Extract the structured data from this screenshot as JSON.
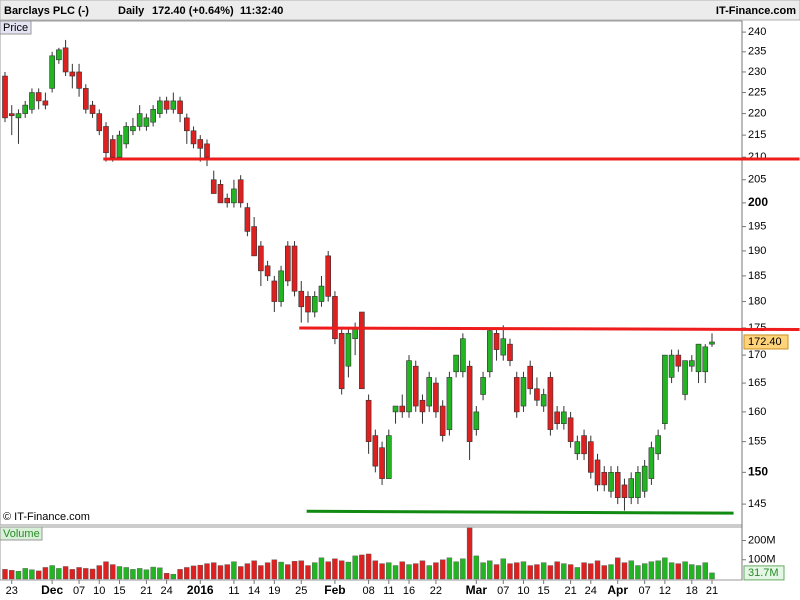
{
  "header": {
    "title": "Barclays PLC (-)",
    "period": "Daily",
    "quote": "172.40 (+0.64%)",
    "time": "11:32:40",
    "site": "IT-Finance.com"
  },
  "chart_data": {
    "type": "candlestick",
    "log_scale": true,
    "price_label": "Price",
    "volume_label": "Volume",
    "watermark": "© IT-Finance.com",
    "up_color": "#22b422",
    "down_color": "#dd2020",
    "categories": [
      null,
      "23",
      null,
      null,
      null,
      null,
      null,
      "Dec",
      null,
      null,
      null,
      "07",
      null,
      null,
      "10",
      null,
      null,
      "15",
      null,
      null,
      null,
      "21",
      null,
      null,
      "24",
      null,
      null,
      null,
      null,
      "2016",
      null,
      null,
      null,
      null,
      "11",
      null,
      null,
      "14",
      null,
      null,
      "19",
      null,
      null,
      null,
      "25",
      null,
      null,
      null,
      null,
      "Feb",
      null,
      null,
      null,
      null,
      "08",
      null,
      null,
      "11",
      null,
      null,
      "16",
      null,
      null,
      null,
      "22",
      null,
      null,
      null,
      null,
      null,
      "Mar",
      null,
      null,
      null,
      "07",
      null,
      null,
      "10",
      null,
      null,
      "15",
      null,
      null,
      null,
      "21",
      null,
      null,
      "24",
      null,
      null,
      null,
      "Apr",
      null,
      null,
      null,
      "07",
      null,
      null,
      "12",
      null,
      null,
      null,
      "18",
      null,
      null,
      "21"
    ],
    "open": [
      229,
      220,
      219,
      220,
      221,
      225,
      223,
      226,
      233,
      236,
      230,
      230,
      226,
      222,
      220,
      217,
      214,
      210,
      213,
      216,
      217,
      217,
      218,
      220,
      223,
      221,
      223,
      219,
      216,
      214,
      213,
      205,
      204,
      201,
      200,
      205,
      199,
      195,
      191,
      187,
      184,
      180,
      191,
      191,
      182,
      181,
      178,
      180,
      189,
      181,
      174,
      168,
      173,
      178,
      162,
      156,
      154,
      149,
      160,
      161,
      160,
      168,
      162,
      161,
      165,
      161,
      157,
      167,
      167,
      168,
      157,
      163,
      167,
      174,
      170,
      172,
      166,
      161,
      168,
      164,
      161,
      166,
      160,
      158,
      159,
      153,
      156,
      155,
      152,
      150,
      147,
      150,
      148,
      146,
      146,
      147,
      149,
      153,
      158,
      166,
      170,
      163,
      168,
      167,
      167,
      172
    ],
    "high": [
      230,
      222,
      221,
      223,
      226,
      226,
      225,
      235,
      236,
      238,
      232,
      232,
      227,
      223,
      221,
      218,
      215,
      216,
      218,
      219,
      222,
      220,
      222,
      224,
      224,
      225,
      224,
      220,
      217,
      215,
      214,
      207,
      205,
      202,
      205,
      206,
      200,
      197,
      192,
      188,
      185,
      187,
      192,
      192,
      184,
      182,
      182,
      185,
      190,
      182,
      175,
      175,
      176,
      178,
      163,
      157,
      155,
      157,
      161,
      163,
      170,
      169,
      163,
      167,
      166,
      162,
      167,
      170,
      174,
      169,
      161,
      167,
      175,
      175,
      175.5,
      173,
      167,
      167,
      169,
      166,
      164,
      167,
      161,
      161,
      160,
      156,
      157,
      156,
      153,
      151,
      151,
      151,
      149,
      150,
      151,
      152,
      155,
      157,
      170,
      171,
      171,
      169,
      170,
      172,
      172,
      174
    ],
    "low": [
      218,
      215,
      213,
      219,
      220,
      221,
      221,
      225,
      232,
      229,
      226,
      224,
      220,
      219,
      215,
      209,
      209,
      210,
      212,
      215,
      216,
      216,
      217,
      219,
      220,
      220,
      218,
      213,
      212,
      209,
      208,
      202,
      200,
      199,
      199,
      199,
      193,
      189,
      183,
      184,
      178,
      179,
      183,
      181,
      176,
      176,
      177,
      179,
      180,
      172,
      163,
      166,
      170,
      164,
      153,
      150,
      148,
      149,
      158,
      159,
      159,
      160,
      158,
      160,
      159,
      155,
      156,
      166,
      166,
      152,
      156,
      162,
      166,
      169,
      169,
      168,
      159,
      160,
      163,
      161,
      160,
      156,
      157,
      157,
      154,
      152,
      152,
      149,
      147,
      147,
      146,
      145,
      144,
      145,
      145,
      146,
      148,
      152,
      157,
      165,
      167,
      162,
      167,
      165,
      165,
      171.5
    ],
    "close": [
      219,
      219.5,
      220,
      222,
      225,
      223,
      222,
      234,
      235.5,
      230,
      229,
      226,
      221,
      220,
      216,
      211,
      210,
      215,
      217,
      217,
      220,
      219,
      221,
      223,
      221,
      223,
      220,
      216,
      213,
      212,
      210,
      202,
      200,
      200,
      203,
      200,
      194,
      189,
      186,
      185,
      180,
      186,
      184,
      182,
      179,
      178,
      181,
      183,
      181,
      173,
      164,
      174,
      175,
      164,
      155,
      151,
      149,
      156,
      161,
      160,
      169,
      161,
      160,
      166,
      160,
      156,
      166,
      170,
      173,
      155,
      160,
      166,
      174.5,
      171,
      173,
      169,
      160,
      166,
      164,
      162,
      163,
      157,
      158,
      160,
      155,
      155,
      153,
      150,
      148,
      148,
      150,
      146,
      146,
      149,
      150,
      151,
      154,
      156,
      170,
      170,
      168,
      169,
      169,
      172,
      171.5,
      172.4
    ],
    "volume": [
      50,
      45,
      40,
      55,
      48,
      42,
      60,
      70,
      55,
      65,
      50,
      60,
      55,
      52,
      70,
      90,
      75,
      65,
      60,
      50,
      55,
      48,
      62,
      58,
      30,
      25,
      50,
      60,
      68,
      72,
      80,
      85,
      70,
      75,
      90,
      65,
      80,
      95,
      70,
      85,
      100,
      88,
      75,
      92,
      95,
      70,
      85,
      110,
      90,
      105,
      95,
      88,
      120,
      125,
      130,
      95,
      80,
      85,
      70,
      90,
      75,
      80,
      95,
      70,
      85,
      100,
      110,
      90,
      105,
      265,
      120,
      85,
      95,
      75,
      105,
      80,
      85,
      90,
      70,
      75,
      85,
      70,
      90,
      80,
      75,
      60,
      85,
      80,
      95,
      70,
      75,
      110,
      85,
      95,
      70,
      80,
      90,
      95,
      110,
      85,
      80,
      90,
      75,
      70,
      85,
      31.7
    ],
    "ylim": [
      141.8,
      242.6
    ],
    "yticks": [
      145,
      150,
      155,
      160,
      165,
      170,
      175,
      180,
      185,
      190,
      195,
      200,
      205,
      210,
      215,
      220,
      225,
      230,
      235,
      240
    ],
    "bold_ticks": [
      150,
      200
    ],
    "volume_ylim": [
      0,
      270
    ],
    "volume_ticks": [
      {
        "value": 200,
        "label": "200M"
      },
      {
        "value": 100,
        "label": "100M"
      }
    ],
    "last_price": {
      "value": 172.4,
      "label": "172.40"
    },
    "last_volume": {
      "value": 31.7,
      "label": "31.7M"
    },
    "trendlines": [
      {
        "color": "#ee1c1c",
        "x": [
          14.6,
          118
        ],
        "y": [
          209.6,
          209.6
        ]
      },
      {
        "color": "#ee1c1c",
        "x": [
          43.7,
          118
        ],
        "y": [
          175,
          174.7
        ]
      },
      {
        "color": "#108a10",
        "x": [
          44.8,
          108.2
        ],
        "y": [
          143.9,
          143.6
        ]
      }
    ]
  }
}
